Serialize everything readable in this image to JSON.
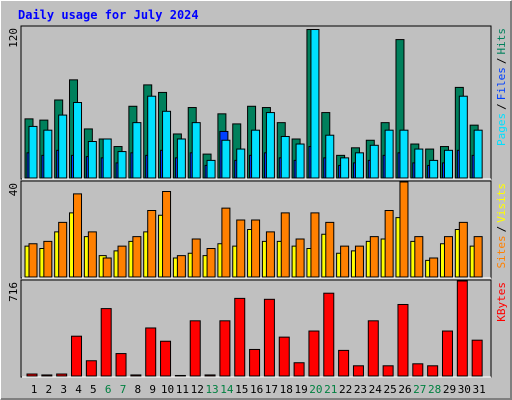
{
  "chart_data": [
    {
      "type": "bar",
      "title": "Daily usage for July 2024",
      "legend_separator": "/",
      "series": [
        {
          "name": "Hits",
          "color": "#00805c",
          "values": [
            47,
            46,
            62,
            78,
            39,
            31,
            25,
            57,
            74,
            68,
            35,
            56,
            19,
            51,
            43,
            57,
            56,
            44,
            31,
            118,
            52,
            18,
            24,
            30,
            44,
            110,
            27,
            23,
            25,
            72,
            42
          ]
        },
        {
          "name": "Files",
          "color": "#0040ff",
          "values": [
            20,
            18,
            22,
            18,
            17,
            16,
            12,
            20,
            18,
            22,
            16,
            20,
            10,
            37,
            14,
            18,
            20,
            16,
            14,
            25,
            16,
            10,
            12,
            14,
            18,
            20,
            12,
            10,
            12,
            22,
            18
          ]
        },
        {
          "name": "Pages",
          "color": "#00e0ff",
          "values": [
            41,
            38,
            50,
            60,
            29,
            31,
            21,
            44,
            65,
            53,
            31,
            44,
            14,
            30,
            23,
            38,
            52,
            33,
            27,
            118,
            34,
            16,
            20,
            26,
            38,
            38,
            23,
            14,
            22,
            65,
            38
          ]
        }
      ],
      "ylim": [
        0,
        120
      ],
      "yticks": [
        120
      ]
    },
    {
      "type": "bar",
      "legend_separator": "/",
      "series": [
        {
          "name": "Visits",
          "color": "#ffff00",
          "values": [
            13,
            12,
            19,
            27,
            17,
            9,
            11,
            15,
            19,
            26,
            8,
            10,
            9,
            14,
            13,
            20,
            15,
            15,
            13,
            12,
            18,
            10,
            11,
            15,
            16,
            25,
            15,
            7,
            14,
            20,
            13
          ]
        },
        {
          "name": "Sites",
          "color": "#ff8000",
          "values": [
            14,
            15,
            23,
            35,
            19,
            8,
            13,
            17,
            28,
            36,
            9,
            16,
            12,
            29,
            24,
            24,
            19,
            27,
            16,
            27,
            23,
            13,
            13,
            17,
            28,
            40,
            17,
            8,
            17,
            23,
            17
          ]
        }
      ],
      "ylim": [
        0,
        40
      ],
      "yticks": [
        40
      ]
    },
    {
      "type": "bar",
      "categories": [
        "1",
        "2",
        "3",
        "4",
        "5",
        "6",
        "7",
        "8",
        "9",
        "10",
        "11",
        "12",
        "13",
        "14",
        "15",
        "16",
        "17",
        "18",
        "19",
        "20",
        "21",
        "22",
        "23",
        "24",
        "25",
        "26",
        "27",
        "28",
        "29",
        "30",
        "31"
      ],
      "category_colors": [
        "#000000",
        "#000000",
        "#000000",
        "#000000",
        "#000000",
        "#008040",
        "#008040",
        "#000000",
        "#000000",
        "#000000",
        "#000000",
        "#000000",
        "#008040",
        "#008040",
        "#000000",
        "#000000",
        "#000000",
        "#000000",
        "#000000",
        "#008040",
        "#008040",
        "#000000",
        "#000000",
        "#000000",
        "#000000",
        "#000000",
        "#008040",
        "#008040",
        "#000000",
        "#000000",
        "#000000"
      ],
      "series": [
        {
          "name": "KBytes",
          "color": "#ff0000",
          "values": [
            15,
            8,
            15,
            300,
            115,
            508,
            169,
            8,
            362,
            262,
            4,
            416,
            8,
            416,
            585,
            200,
            578,
            293,
            100,
            339,
            624,
            193,
            77,
            416,
            77,
            539,
            92,
            77,
            339,
            716,
            270
          ]
        }
      ],
      "ylim": [
        0,
        716
      ],
      "yticks": [
        716
      ]
    }
  ]
}
